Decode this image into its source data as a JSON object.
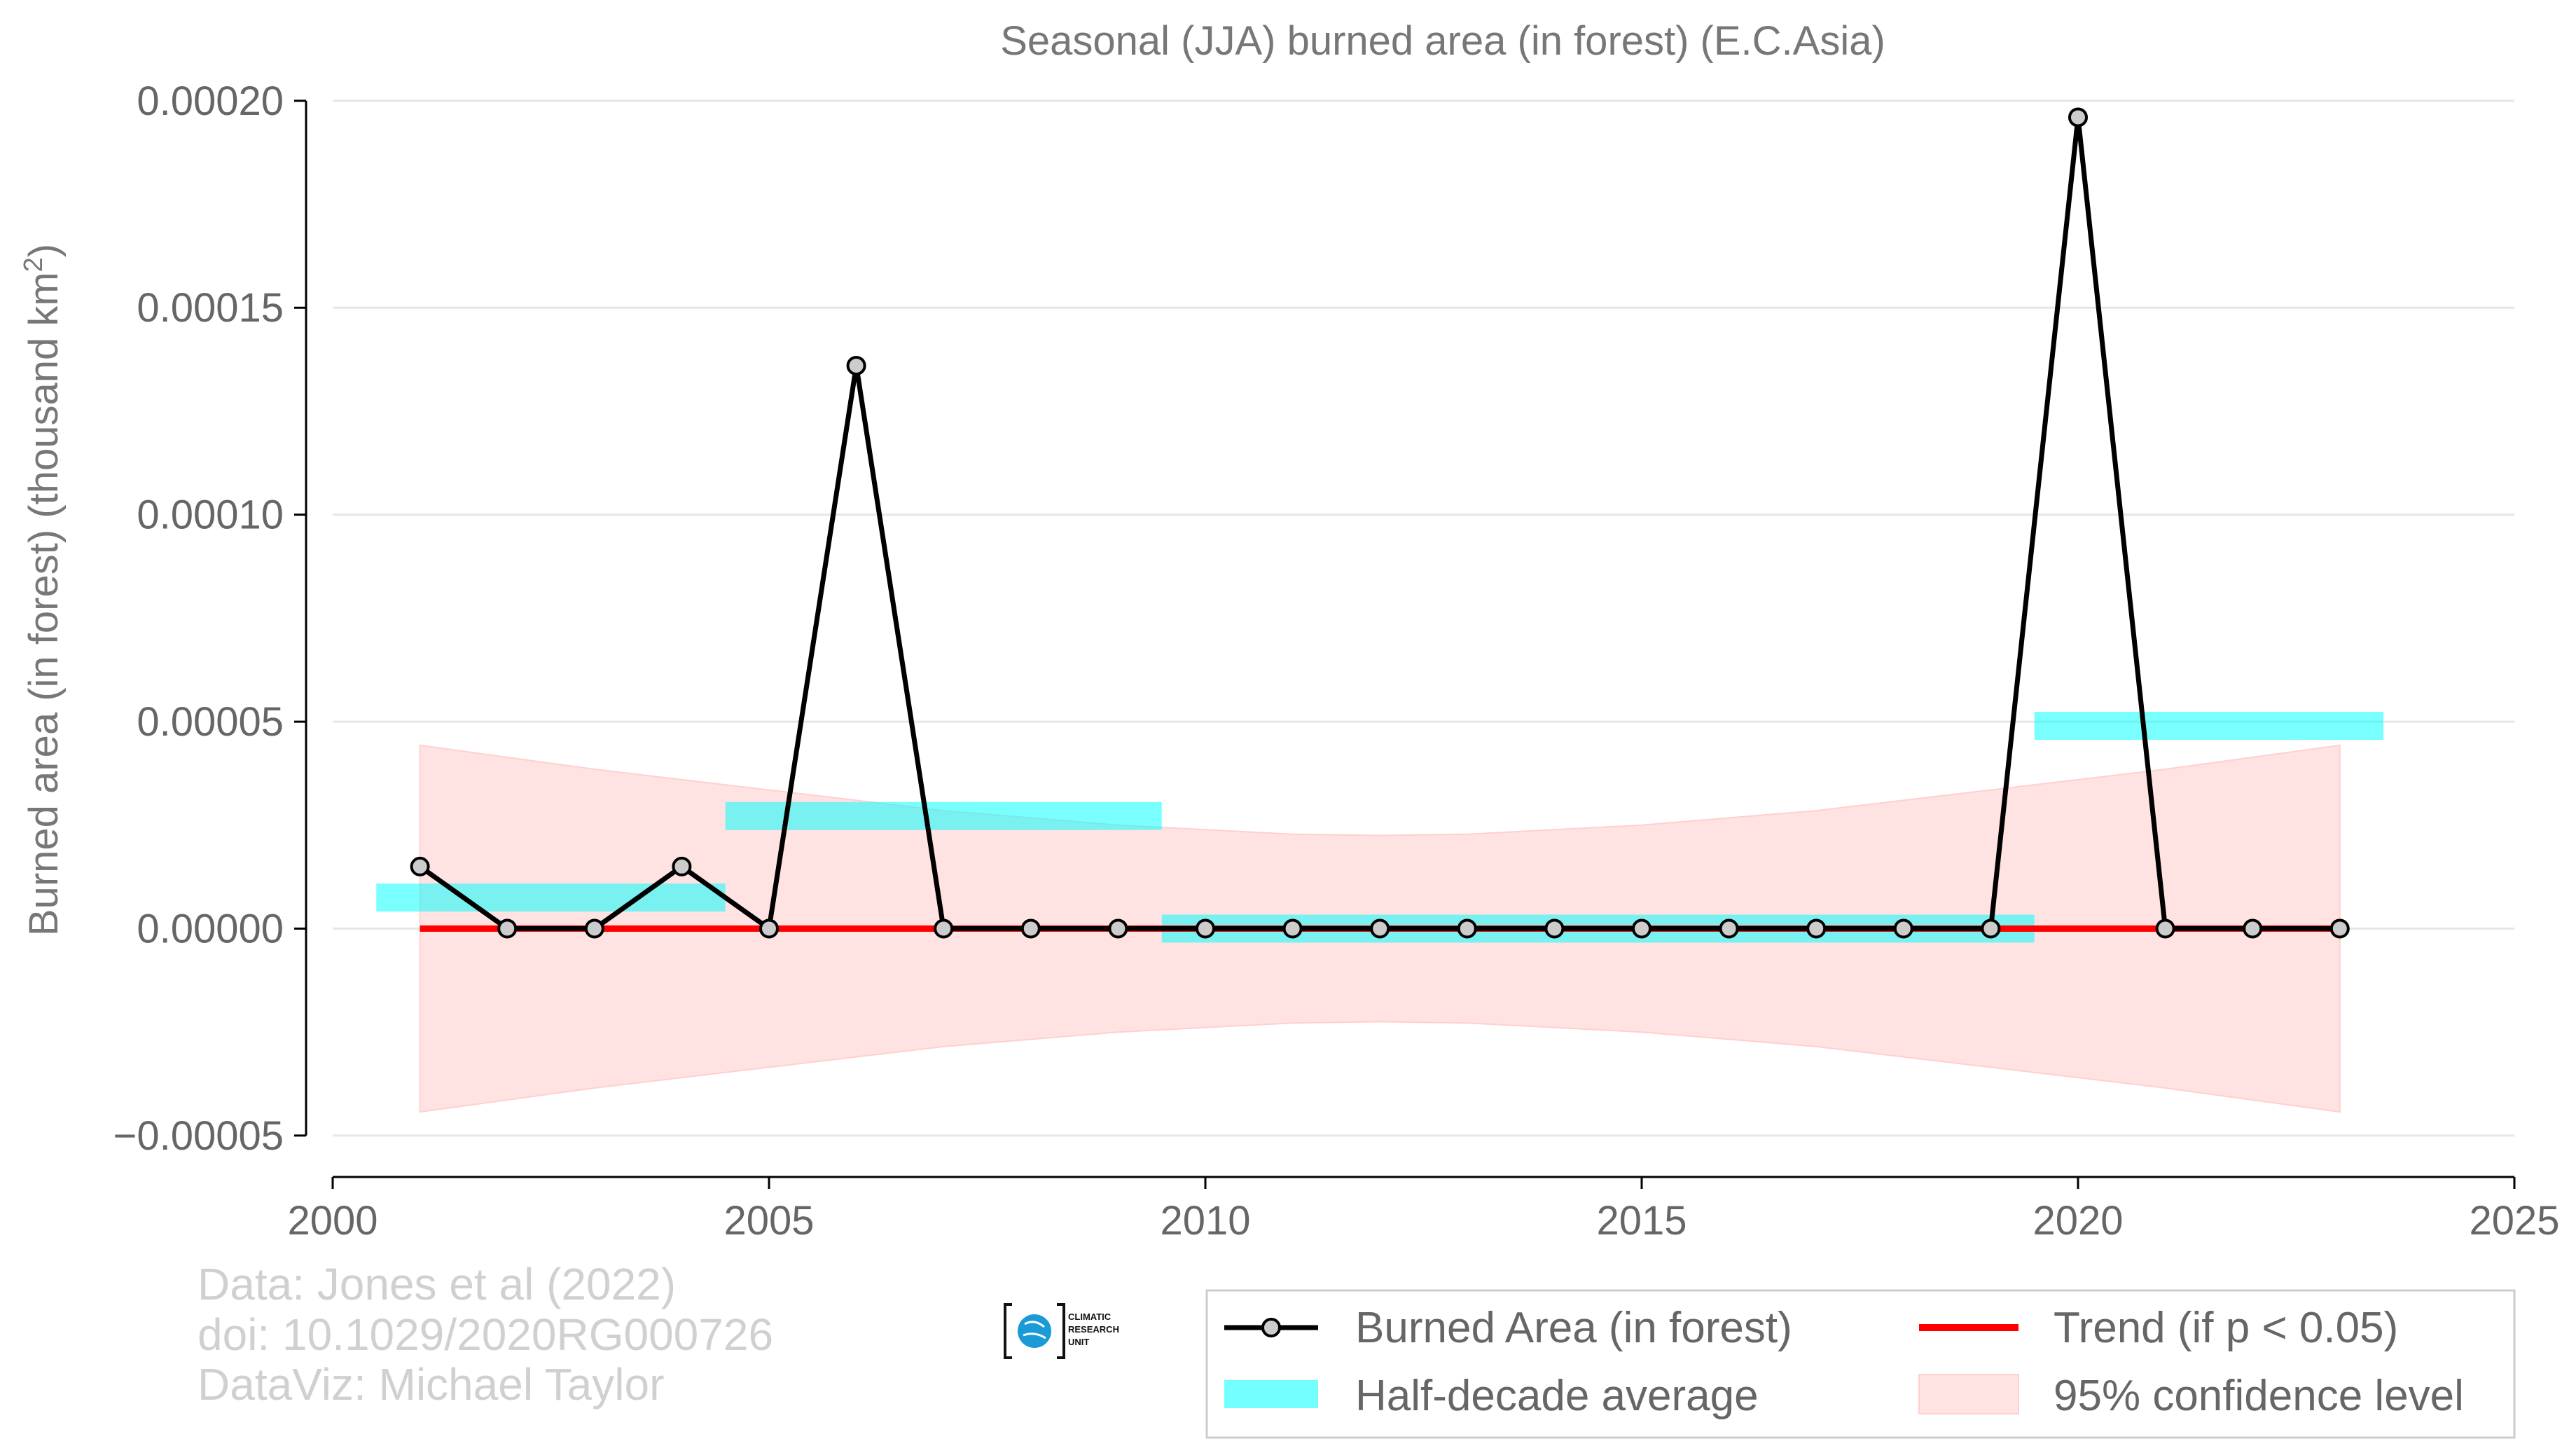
{
  "chart_data": {
    "type": "line",
    "title": "Seasonal (JJA) burned area (in forest) (E.C.Asia)",
    "ylabel": "Burned area (in forest) (thousand km",
    "ylabel_sup": "2",
    "ylabel_end": ")",
    "xlim": [
      2000,
      2025
    ],
    "ylim": [
      -6e-05,
      0.000202
    ],
    "x_ticks": [
      2000,
      2005,
      2010,
      2015,
      2020,
      2025
    ],
    "x_tick_labels": [
      "2000",
      "2005",
      "2010",
      "2015",
      "2020",
      "2025"
    ],
    "y_ticks": [
      -5e-05,
      0,
      5e-05,
      0.0001,
      0.00015,
      0.0002
    ],
    "y_tick_labels": [
      "−0.00005",
      "0.00000",
      "0.00005",
      "0.00010",
      "0.00015",
      "0.00020"
    ],
    "grid": "horizontal",
    "legend_position": "bottom-right",
    "series": [
      {
        "name": "Burned Area (in forest)",
        "type": "line-marker",
        "color": "#000000",
        "marker_fill": "#cccccc",
        "x": [
          2001,
          2002,
          2003,
          2004,
          2005,
          2006,
          2007,
          2008,
          2009,
          2010,
          2011,
          2012,
          2013,
          2014,
          2015,
          2016,
          2017,
          2018,
          2019,
          2020,
          2021,
          2022,
          2023
        ],
        "y": [
          1.5e-05,
          0,
          0,
          1.5e-05,
          0,
          0.000136,
          0,
          0,
          0,
          0,
          0,
          0,
          0,
          0,
          0,
          0,
          0,
          0,
          0,
          0.000196,
          0,
          0,
          0
        ]
      },
      {
        "name": "Trend (if p < 0.05)",
        "type": "line",
        "color": "#ff0000",
        "x": [
          2001,
          2023
        ],
        "y": [
          0,
          0
        ]
      },
      {
        "name": "Half-decade average",
        "type": "step-band",
        "color": "#00ffff",
        "segments": [
          {
            "x0": 2000.5,
            "x1": 2004.5,
            "y": 7.5e-06
          },
          {
            "x0": 2004.5,
            "x1": 2009.5,
            "y": 2.72e-05
          },
          {
            "x0": 2009.5,
            "x1": 2019.5,
            "y": 0
          },
          {
            "x0": 2019.5,
            "x1": 2023.5,
            "y": 4.9e-05
          }
        ]
      },
      {
        "name": "95% confidence level",
        "type": "band",
        "color": "#ffcccc",
        "x": [
          2001,
          2003,
          2005,
          2007,
          2009,
          2011,
          2012,
          2013,
          2015,
          2017,
          2019,
          2021,
          2023
        ],
        "upper": [
          4.43e-05,
          3.85e-05,
          3.35e-05,
          2.85e-05,
          2.5e-05,
          2.28e-05,
          2.25e-05,
          2.28e-05,
          2.5e-05,
          2.85e-05,
          3.35e-05,
          3.85e-05,
          4.43e-05
        ],
        "lower": [
          -4.43e-05,
          -3.85e-05,
          -3.35e-05,
          -2.85e-05,
          -2.5e-05,
          -2.28e-05,
          -2.25e-05,
          -2.28e-05,
          -2.5e-05,
          -2.85e-05,
          -3.35e-05,
          -3.85e-05,
          -4.43e-05
        ]
      }
    ]
  },
  "credits": {
    "line1": "Data: Jones et al (2022)",
    "line2": "doi: 10.1029/2020RG000726",
    "line3": "DataViz: Michael Taylor"
  },
  "logo": {
    "line1": "CLIMATIC",
    "line2": "RESEARCH",
    "line3": "UNIT"
  },
  "legend": {
    "items": [
      {
        "label": "Burned Area (in forest)"
      },
      {
        "label": "Trend (if p < 0.05)"
      },
      {
        "label": "Half-decade average"
      },
      {
        "label": "95% confidence level"
      }
    ]
  }
}
